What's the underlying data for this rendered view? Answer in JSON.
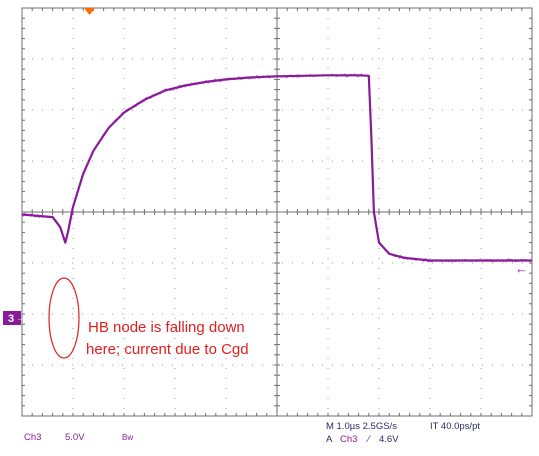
{
  "chart_data": {
    "type": "line",
    "title": "",
    "xlabel": "",
    "ylabel": "",
    "grid": true,
    "x_unit": "µs",
    "y_unit": "V",
    "x_divisions": 10,
    "y_divisions": 8,
    "xlim": [
      0,
      10
    ],
    "ylim": [
      -4,
      4
    ],
    "series": [
      {
        "name": "",
        "x": [
          0,
          0.6,
          0.75,
          0.85,
          0.9,
          1.0,
          1.2,
          1.4,
          1.7,
          2.0,
          2.4,
          2.8,
          3.2,
          3.6,
          4.0,
          4.5,
          5.0,
          5.5,
          6.0,
          6.6,
          6.8,
          6.85,
          6.9,
          7.0,
          7.2,
          7.5,
          8.0,
          9.0,
          10.0
        ],
        "y": [
          -0.05,
          -0.1,
          -0.3,
          -0.6,
          -0.4,
          0.1,
          0.75,
          1.2,
          1.65,
          1.95,
          2.2,
          2.38,
          2.48,
          2.55,
          2.6,
          2.64,
          2.66,
          2.67,
          2.68,
          2.68,
          2.67,
          1.5,
          0.0,
          -0.6,
          -0.82,
          -0.9,
          -0.95,
          -0.95,
          -0.95
        ]
      }
    ],
    "annotations": [
      "HB node is falling down",
      "here; current due to Cgd"
    ]
  },
  "channel_marker": "3",
  "right_marker": "←",
  "readout": {
    "channel": "Ch3",
    "scale": "5.0V",
    "bw": "Bw",
    "timebase": "M 1.0µs 2.5GS/s",
    "interp": "IT 40.0ps/pt",
    "trigger_prefix": "A",
    "trigger_channel": "Ch3",
    "trigger_slope": "⁄",
    "trigger_level": "4.6V"
  },
  "colors": {
    "trace": "#8a1a9a",
    "annotation": "#e41e1e",
    "trigger_marker": "#ff6a00",
    "readout_text": "#8a1a9a"
  }
}
